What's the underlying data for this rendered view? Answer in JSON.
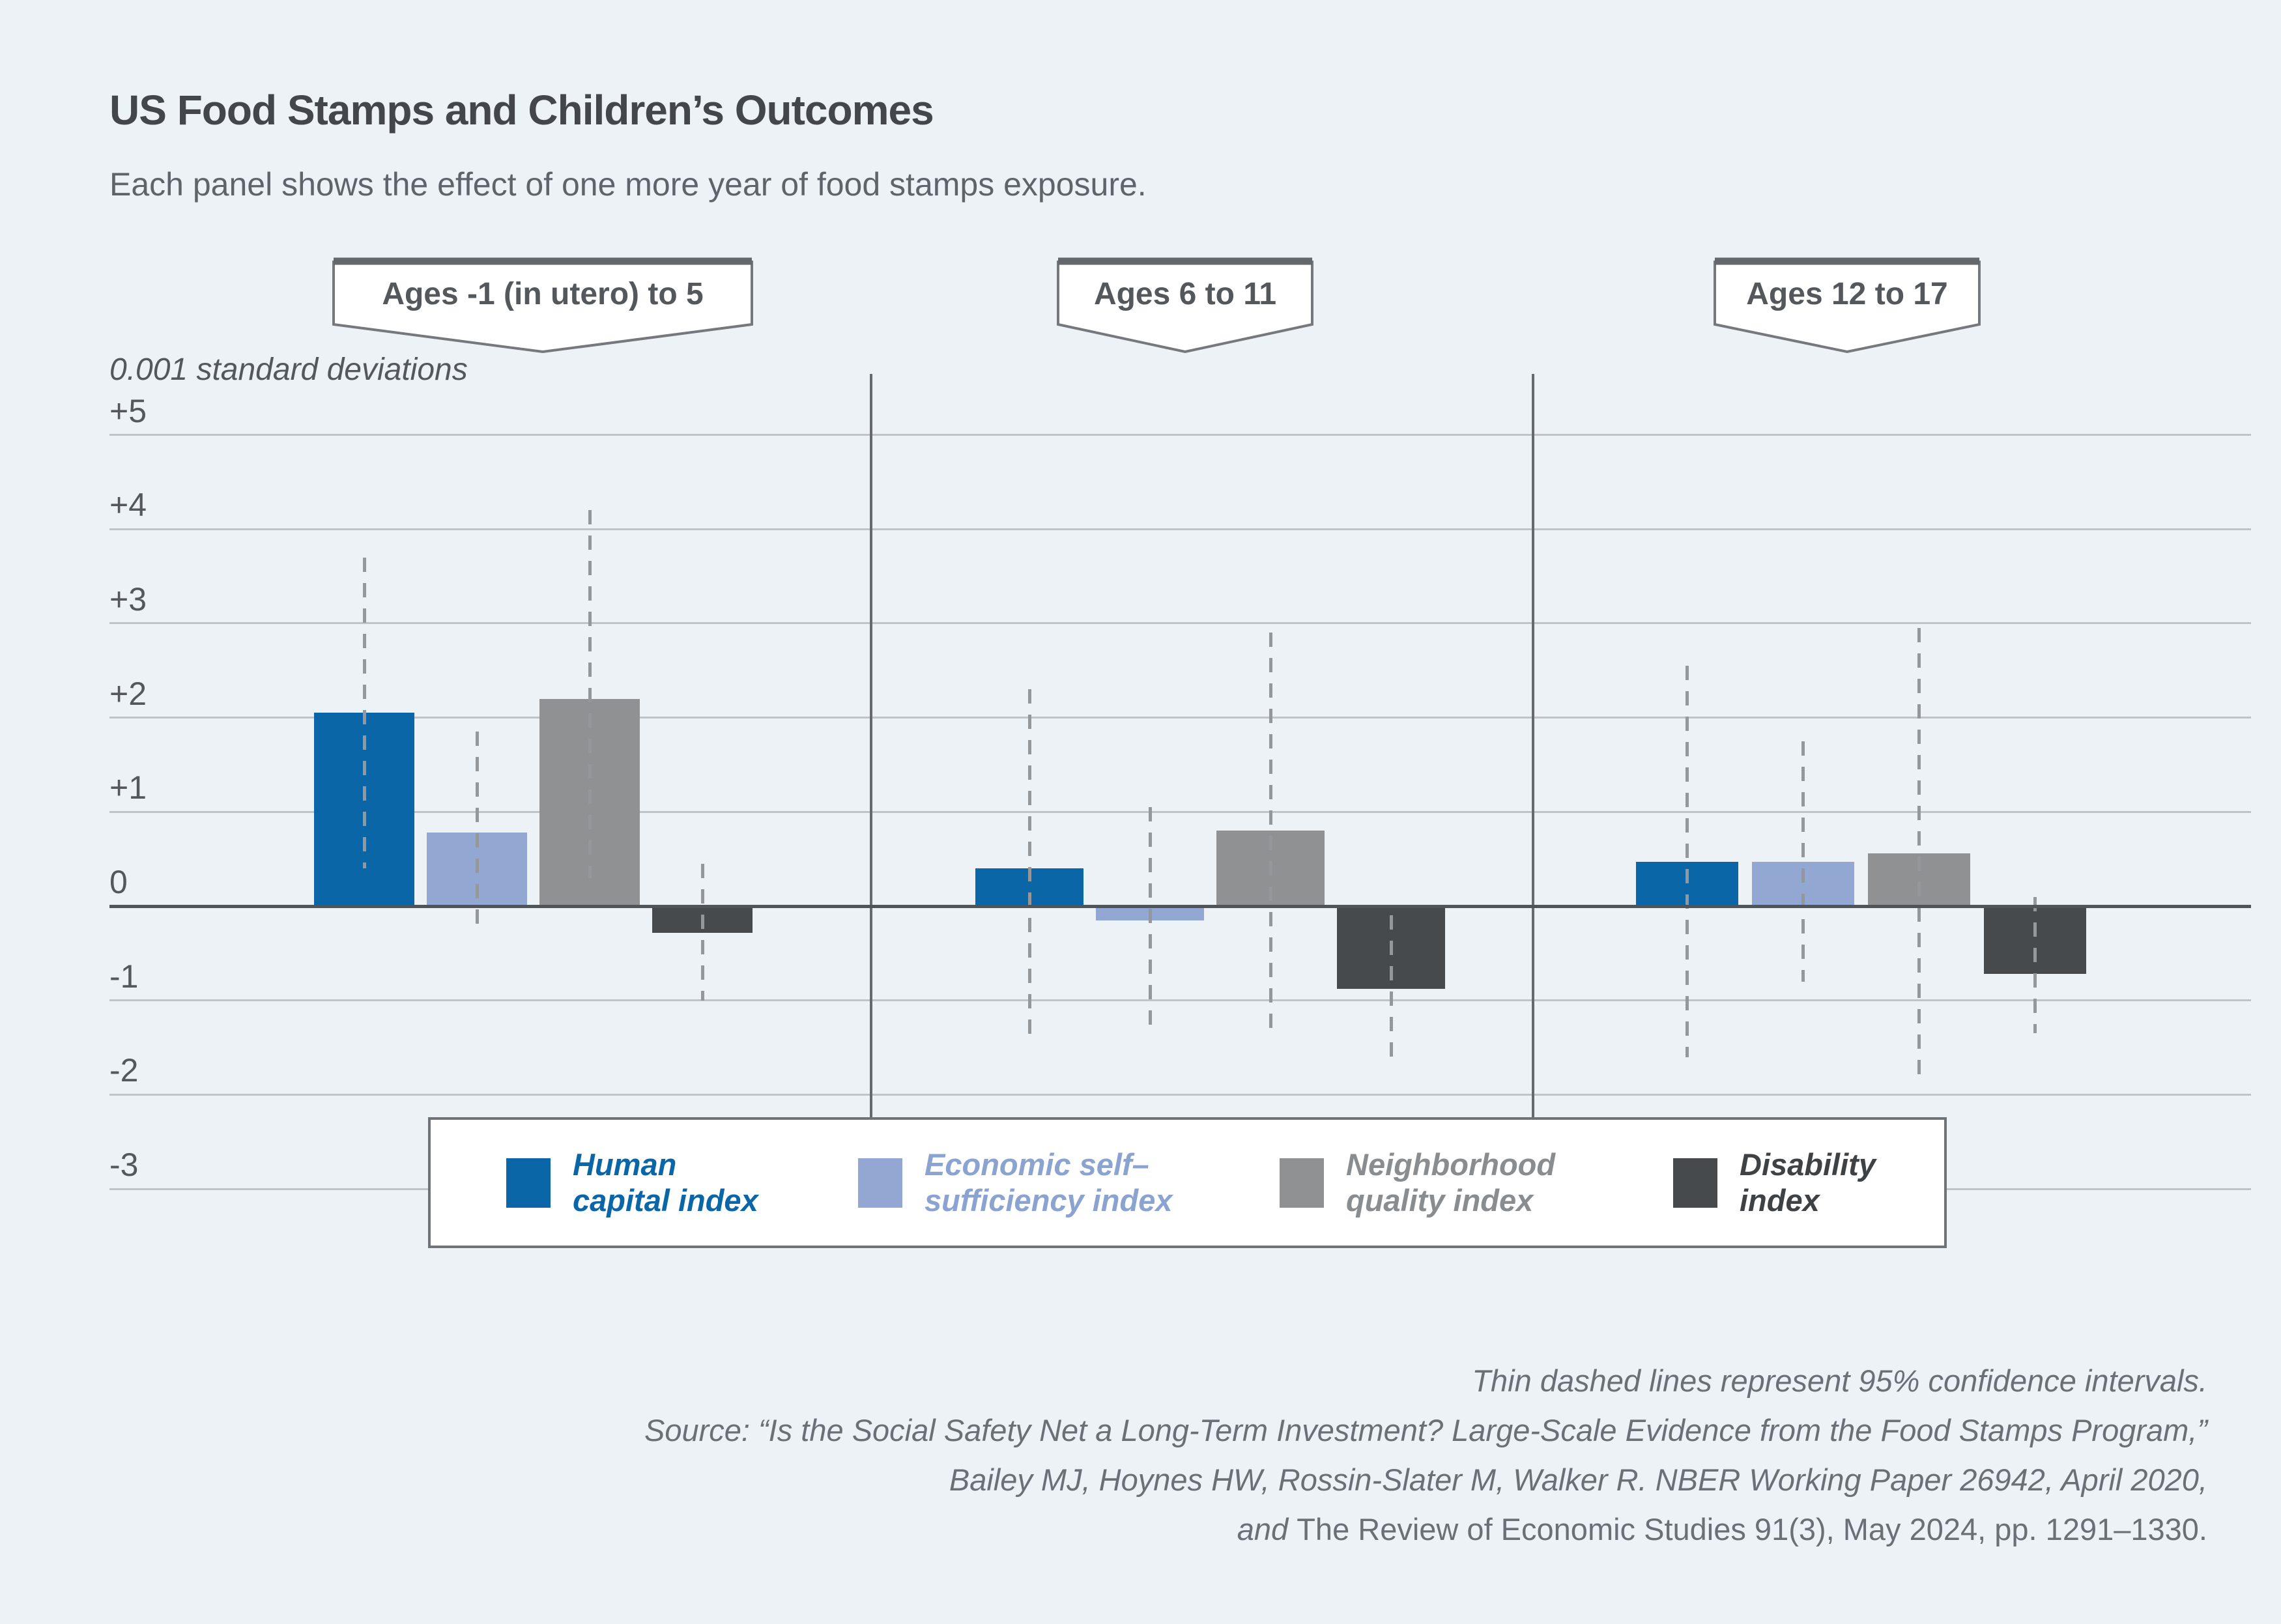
{
  "header": {
    "title": "US Food Stamps and Children’s Outcomes",
    "subtitle": "Each panel shows the effect of one more year of food stamps exposure."
  },
  "chart_data": {
    "type": "bar",
    "unit_label": "0.001 standard deviations",
    "ylim": [
      -3.5,
      5.5
    ],
    "grid": true,
    "legend_position": "bottom",
    "y_ticks": [
      {
        "value": 5,
        "label": "+5"
      },
      {
        "value": 4,
        "label": "+4"
      },
      {
        "value": 3,
        "label": "+3"
      },
      {
        "value": 2,
        "label": "+2"
      },
      {
        "value": 1,
        "label": "+1"
      },
      {
        "value": 0,
        "label": "0"
      },
      {
        "value": -1,
        "label": "-1"
      },
      {
        "value": -2,
        "label": "-2"
      },
      {
        "value": -3,
        "label": "-3"
      }
    ],
    "series": [
      {
        "name": "Human capital index",
        "label_lines": [
          "Human",
          "capital index"
        ],
        "color": "#0b66a8",
        "text_color": "#0b66a8"
      },
      {
        "name": "Economic self–sufficiency index",
        "label_lines": [
          "Economic self–",
          "sufficiency index"
        ],
        "color": "#92a7d2",
        "text_color": "#8ba3d0"
      },
      {
        "name": "Neighborhood quality index",
        "label_lines": [
          "Neighborhood",
          "quality index"
        ],
        "color": "#8f9193",
        "text_color": "#8a8d90"
      },
      {
        "name": "Disability index",
        "label_lines": [
          "Disability",
          "index"
        ],
        "color": "#474a4d",
        "text_color": "#3f4245"
      }
    ],
    "panels": [
      {
        "label": "Ages -1 (in utero) to 5",
        "values": [
          2.05,
          0.78,
          2.2,
          -0.28
        ],
        "ci": [
          [
            0.4,
            3.7
          ],
          [
            -0.25,
            1.85
          ],
          [
            0.3,
            4.2
          ],
          [
            -1.0,
            0.45
          ]
        ]
      },
      {
        "label": "Ages 6 to 11",
        "values": [
          0.4,
          -0.15,
          0.8,
          -0.88
        ],
        "ci": [
          [
            -1.45,
            2.3
          ],
          [
            -1.3,
            1.05
          ],
          [
            -1.3,
            2.9
          ],
          [
            -1.6,
            -0.1
          ]
        ]
      },
      {
        "label": "Ages 12 to 17",
        "values": [
          0.47,
          0.47,
          0.56,
          -0.72
        ],
        "ci": [
          [
            -1.6,
            2.55
          ],
          [
            -0.8,
            1.75
          ],
          [
            -1.8,
            2.95
          ],
          [
            -1.35,
            0.1
          ]
        ]
      }
    ]
  },
  "footer": {
    "note": "Thin dashed lines represent 95% confidence intervals.",
    "source_line1": "Source: “Is the Social Safety Net a Long-Term Investment? Large-Scale Evidence from the Food Stamps Program,”",
    "source_line2": "Bailey MJ, Hoynes HW, Rossin-Slater M, Walker R. NBER Working Paper 26942, April 2020,",
    "source_line3_italic": "and ",
    "source_line3_roman": "The Review of Economic Studies 91(3), May 2024, pp. 1291–1330."
  }
}
